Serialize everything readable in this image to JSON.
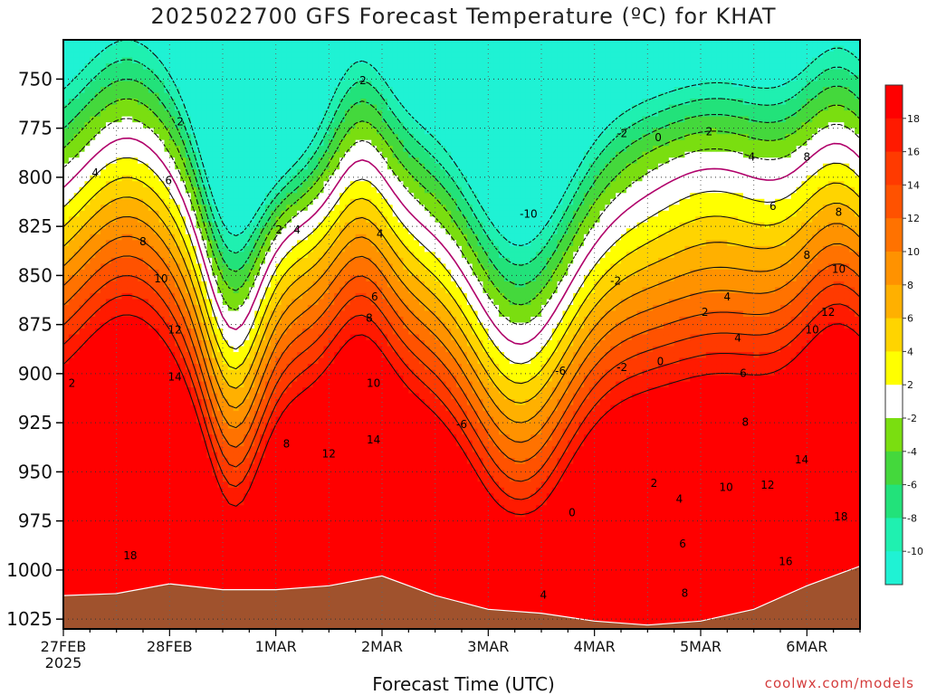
{
  "chart_data": {
    "type": "heatmap",
    "title": "2025022700 GFS Forecast Temperature (ºC) for KHAT",
    "xlabel": "Forecast Time (UTC)",
    "ylabel": "",
    "x_ticks": [
      {
        "label": "27FEB",
        "sub": "2025",
        "day": 0
      },
      {
        "label": "28FEB",
        "day": 1
      },
      {
        "label": "1MAR",
        "day": 2
      },
      {
        "label": "2MAR",
        "day": 3
      },
      {
        "label": "3MAR",
        "day": 4
      },
      {
        "label": "4MAR",
        "day": 5
      },
      {
        "label": "5MAR",
        "day": 6
      },
      {
        "label": "6MAR",
        "day": 7
      }
    ],
    "xlim": [
      0,
      7.5
    ],
    "y_ticks": [
      750,
      775,
      800,
      825,
      850,
      875,
      900,
      925,
      950,
      975,
      1000,
      1025
    ],
    "ylim": [
      730,
      1030
    ],
    "colorbar": {
      "levels": [
        -11,
        -10,
        -8,
        -6,
        -4,
        -2,
        2,
        4,
        6,
        8,
        10,
        12,
        14,
        16,
        18,
        20
      ],
      "labels": [
        "-10",
        "-8",
        "-6",
        "-4",
        "-2",
        "2",
        "4",
        "6",
        "8",
        "10",
        "12",
        "14",
        "16",
        "18"
      ],
      "colors": [
        "#1ff2d4",
        "#1ff0b0",
        "#22e27a",
        "#44d83c",
        "#7ade10",
        "#ffffff",
        "#ffff00",
        "#ffd400",
        "#ffb000",
        "#ff9200",
        "#ff7200",
        "#ff5200",
        "#ff3a00",
        "#ff1a00",
        "#ff0000"
      ]
    },
    "terrain_color": "#a0522d",
    "surface_pressure": [
      {
        "day": 0,
        "p": 1013
      },
      {
        "day": 0.5,
        "p": 1012
      },
      {
        "day": 1,
        "p": 1007
      },
      {
        "day": 1.5,
        "p": 1010
      },
      {
        "day": 2,
        "p": 1010
      },
      {
        "day": 2.5,
        "p": 1008
      },
      {
        "day": 3,
        "p": 1003
      },
      {
        "day": 3.5,
        "p": 1013
      },
      {
        "day": 4,
        "p": 1020
      },
      {
        "day": 4.5,
        "p": 1022
      },
      {
        "day": 5,
        "p": 1026
      },
      {
        "day": 5.5,
        "p": 1028
      },
      {
        "day": 6,
        "p": 1026
      },
      {
        "day": 6.5,
        "p": 1020
      },
      {
        "day": 7,
        "p": 1008
      },
      {
        "day": 7.5,
        "p": 998
      }
    ],
    "contour_labels": [
      {
        "text": "2",
        "day": 0.08,
        "p": 905
      },
      {
        "text": "4",
        "day": 0.3,
        "p": 798
      },
      {
        "text": "6",
        "day": 0.99,
        "p": 802
      },
      {
        "text": "8",
        "day": 0.75,
        "p": 833
      },
      {
        "text": "10",
        "day": 0.92,
        "p": 852
      },
      {
        "text": "12",
        "day": 1.05,
        "p": 878
      },
      {
        "text": "14",
        "day": 1.05,
        "p": 902
      },
      {
        "text": "18",
        "day": 0.63,
        "p": 993
      },
      {
        "text": "2",
        "day": 1.1,
        "p": 772
      },
      {
        "text": "2",
        "day": 2.03,
        "p": 827
      },
      {
        "text": "4",
        "day": 2.2,
        "p": 827
      },
      {
        "text": "2",
        "day": 2.82,
        "p": 751
      },
      {
        "text": "4",
        "day": 2.98,
        "p": 829
      },
      {
        "text": "6",
        "day": 2.93,
        "p": 861
      },
      {
        "text": "8",
        "day": 2.88,
        "p": 872
      },
      {
        "text": "8",
        "day": 2.1,
        "p": 936
      },
      {
        "text": "10",
        "day": 2.92,
        "p": 905
      },
      {
        "text": "12",
        "day": 2.5,
        "p": 941
      },
      {
        "text": "14",
        "day": 2.92,
        "p": 934
      },
      {
        "text": "-10",
        "day": 4.38,
        "p": 819
      },
      {
        "text": "-6",
        "day": 4.68,
        "p": 899
      },
      {
        "text": "-6",
        "day": 3.75,
        "p": 926
      },
      {
        "text": "-2",
        "day": 5.2,
        "p": 853
      },
      {
        "text": "-2",
        "day": 5.26,
        "p": 778
      },
      {
        "text": "0",
        "day": 5.6,
        "p": 780
      },
      {
        "text": "0",
        "day": 5.62,
        "p": 894
      },
      {
        "text": "-2",
        "day": 5.26,
        "p": 897
      },
      {
        "text": "0",
        "day": 4.79,
        "p": 971
      },
      {
        "text": "2",
        "day": 6.08,
        "p": 777
      },
      {
        "text": "2",
        "day": 6.04,
        "p": 869
      },
      {
        "text": "4",
        "day": 6.48,
        "p": 790
      },
      {
        "text": "4",
        "day": 6.25,
        "p": 861
      },
      {
        "text": "4",
        "day": 6.35,
        "p": 882
      },
      {
        "text": "4",
        "day": 4.52,
        "p": 1013
      },
      {
        "text": "2",
        "day": 5.56,
        "p": 956
      },
      {
        "text": "4",
        "day": 5.8,
        "p": 964
      },
      {
        "text": "6",
        "day": 6.68,
        "p": 815
      },
      {
        "text": "6",
        "day": 6.4,
        "p": 900
      },
      {
        "text": "6",
        "day": 5.83,
        "p": 987
      },
      {
        "text": "8",
        "day": 7.0,
        "p": 790
      },
      {
        "text": "8",
        "day": 7.0,
        "p": 840
      },
      {
        "text": "8",
        "day": 6.42,
        "p": 925
      },
      {
        "text": "8",
        "day": 5.85,
        "p": 1012
      },
      {
        "text": "8",
        "day": 7.3,
        "p": 818
      },
      {
        "text": "10",
        "day": 7.3,
        "p": 847
      },
      {
        "text": "10",
        "day": 7.05,
        "p": 878
      },
      {
        "text": "10",
        "day": 6.24,
        "p": 958
      },
      {
        "text": "12",
        "day": 7.2,
        "p": 869
      },
      {
        "text": "12",
        "day": 6.63,
        "p": 957
      },
      {
        "text": "14",
        "day": 6.95,
        "p": 944
      },
      {
        "text": "16",
        "day": 6.8,
        "p": 996
      },
      {
        "text": "18",
        "day": 7.32,
        "p": 973
      }
    ]
  },
  "credit": "coolwx.com/models"
}
